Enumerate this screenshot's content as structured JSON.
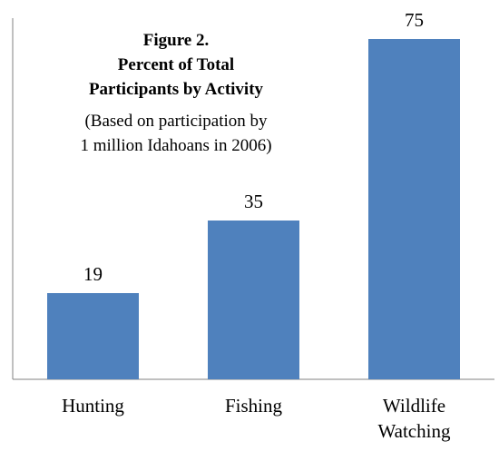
{
  "chart_data": {
    "type": "bar",
    "title": [
      "Figure 2.",
      "Percent of Total",
      "Participants by Activity"
    ],
    "subtitle": [
      "(Based on participation by",
      "1 million Idahoans in 2006)"
    ],
    "categories": [
      [
        "Hunting"
      ],
      [
        "Fishing"
      ],
      [
        "Wildlife",
        "Watching"
      ]
    ],
    "values": [
      19,
      35,
      75
    ],
    "ylim": [
      0,
      80
    ],
    "grid": false,
    "legend": "none",
    "xlabel": "",
    "ylabel": "",
    "bar_color": "#4F81BD",
    "axis_color": "#808080"
  }
}
